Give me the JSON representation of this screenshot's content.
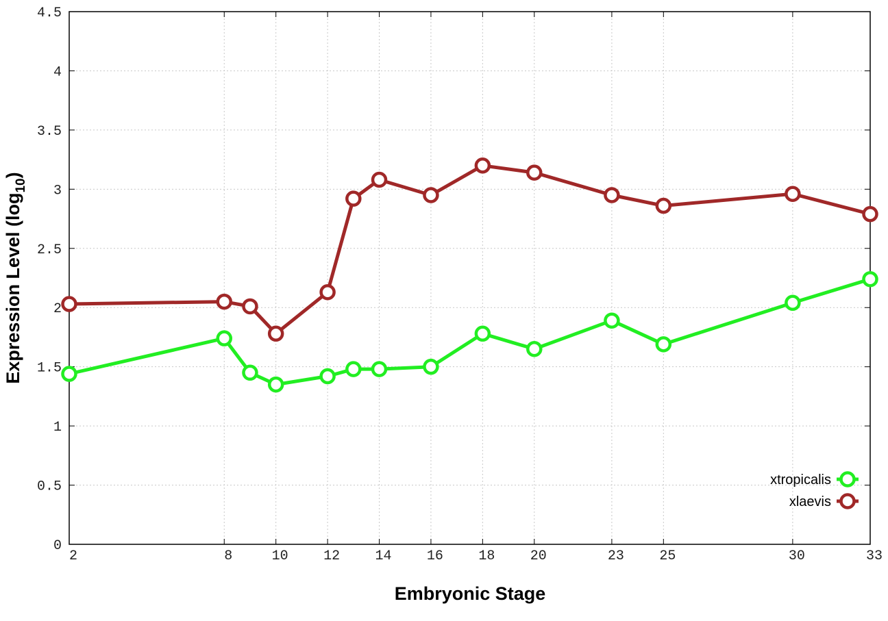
{
  "chart_data": {
    "type": "line",
    "xlabel": "Embryonic Stage",
    "ylabel_main": "Expression Level (log",
    "ylabel_sub": "10",
    "ylabel_close": ")",
    "xlim": [
      2,
      33
    ],
    "ylim": [
      0,
      4.5
    ],
    "grid": true,
    "legend_position": "bottom-right",
    "x_ticks": [
      {
        "value": 2,
        "label": "2"
      },
      {
        "value": 8,
        "label": "8"
      },
      {
        "value": 10,
        "label": "10"
      },
      {
        "value": 12,
        "label": "12"
      },
      {
        "value": 14,
        "label": "14"
      },
      {
        "value": 16,
        "label": "16"
      },
      {
        "value": 18,
        "label": "18"
      },
      {
        "value": 20,
        "label": "20"
      },
      {
        "value": 23,
        "label": "23"
      },
      {
        "value": 25,
        "label": "25"
      },
      {
        "value": 30,
        "label": "30"
      },
      {
        "value": 33,
        "label": "33"
      }
    ],
    "y_ticks": [
      {
        "value": 0,
        "label": "0"
      },
      {
        "value": 0.5,
        "label": "0.5"
      },
      {
        "value": 1,
        "label": "1"
      },
      {
        "value": 1.5,
        "label": "1.5"
      },
      {
        "value": 2,
        "label": "2"
      },
      {
        "value": 2.5,
        "label": "2.5"
      },
      {
        "value": 3,
        "label": "3"
      },
      {
        "value": 3.5,
        "label": "3.5"
      },
      {
        "value": 4,
        "label": "4"
      },
      {
        "value": 4.5,
        "label": "4.5"
      }
    ],
    "series": [
      {
        "name": "xtropicalis",
        "color": "#22ee22",
        "points": [
          {
            "x": 2,
            "y": 1.44
          },
          {
            "x": 8,
            "y": 1.74
          },
          {
            "x": 9,
            "y": 1.45
          },
          {
            "x": 10,
            "y": 1.35
          },
          {
            "x": 12,
            "y": 1.42
          },
          {
            "x": 13,
            "y": 1.48
          },
          {
            "x": 14,
            "y": 1.48
          },
          {
            "x": 16,
            "y": 1.5
          },
          {
            "x": 18,
            "y": 1.78
          },
          {
            "x": 20,
            "y": 1.65
          },
          {
            "x": 23,
            "y": 1.89
          },
          {
            "x": 25,
            "y": 1.69
          },
          {
            "x": 30,
            "y": 2.04
          },
          {
            "x": 33,
            "y": 2.24
          }
        ]
      },
      {
        "name": "xlaevis",
        "color": "#a02828",
        "points": [
          {
            "x": 2,
            "y": 2.03
          },
          {
            "x": 8,
            "y": 2.05
          },
          {
            "x": 9,
            "y": 2.01
          },
          {
            "x": 10,
            "y": 1.78
          },
          {
            "x": 12,
            "y": 2.13
          },
          {
            "x": 13,
            "y": 2.92
          },
          {
            "x": 14,
            "y": 3.08
          },
          {
            "x": 16,
            "y": 2.95
          },
          {
            "x": 18,
            "y": 3.2
          },
          {
            "x": 20,
            "y": 3.14
          },
          {
            "x": 23,
            "y": 2.95
          },
          {
            "x": 25,
            "y": 2.86
          },
          {
            "x": 30,
            "y": 2.96
          },
          {
            "x": 33,
            "y": 2.79
          }
        ]
      }
    ]
  }
}
